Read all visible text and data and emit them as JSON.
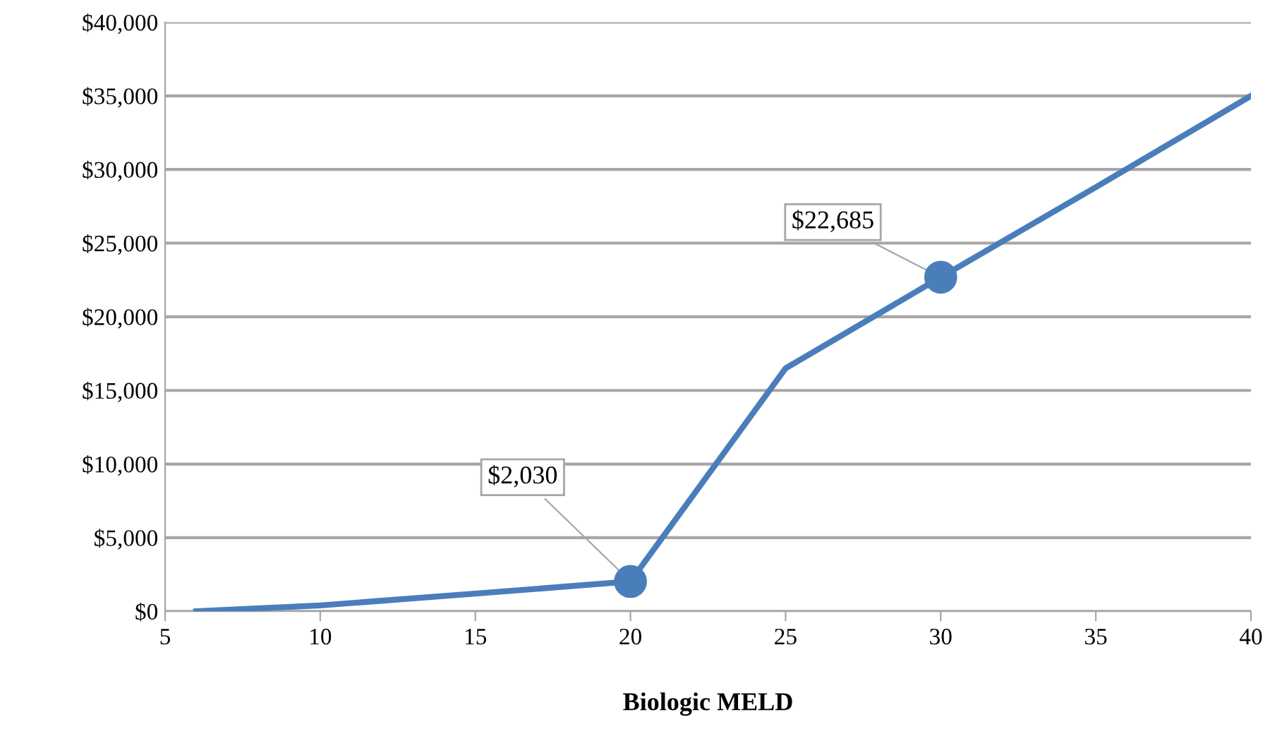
{
  "chart_data": {
    "type": "line",
    "xlabel": "Biologic MELD",
    "series": [
      {
        "color": "#4a7ebb",
        "x": [
          6,
          10,
          15,
          20,
          25,
          30,
          35,
          40
        ],
        "values": [
          0,
          400,
          1200,
          2030,
          16500,
          22685,
          28800,
          35000
        ],
        "marker": "none"
      },
      {
        "type": "scatter",
        "color": "#4a7ebb",
        "x": [
          20,
          30
        ],
        "values": [
          2030,
          22685
        ],
        "value_labels": [
          "$2,030",
          "$22,685"
        ],
        "marker": "circle"
      }
    ],
    "xlim": [
      5,
      40
    ],
    "xticks": [
      5,
      10,
      15,
      20,
      25,
      30,
      35,
      40
    ],
    "ylim": [
      0,
      40000
    ],
    "yticks": [
      {
        "value": 0,
        "label": "$0"
      },
      {
        "value": 5000,
        "label": "$5,000"
      },
      {
        "value": 10000,
        "label": "$10,000"
      },
      {
        "value": 15000,
        "label": "$15,000"
      },
      {
        "value": 20000,
        "label": "$20,000"
      },
      {
        "value": 25000,
        "label": "$25,000"
      },
      {
        "value": 30000,
        "label": "$30,000"
      },
      {
        "value": 35000,
        "label": "$35,000"
      },
      {
        "value": 40000,
        "label": "$40,000"
      }
    ],
    "grid": "y",
    "legend": false
  }
}
